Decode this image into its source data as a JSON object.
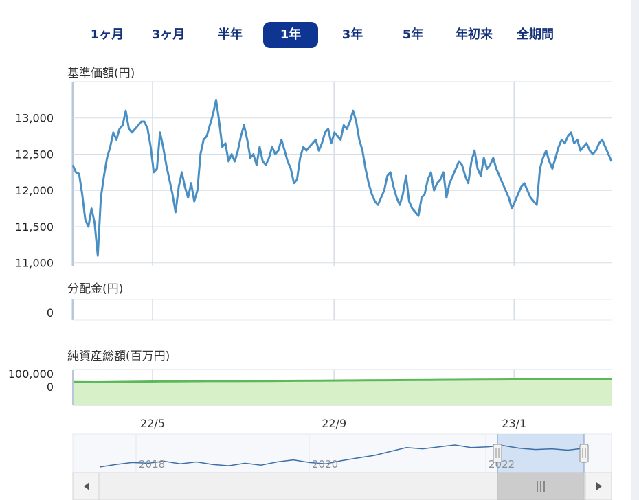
{
  "range_tabs": [
    {
      "label": "1ヶ月",
      "active": false
    },
    {
      "label": "3ヶ月",
      "active": false
    },
    {
      "label": "半年",
      "active": false
    },
    {
      "label": "1年",
      "active": true
    },
    {
      "label": "3年",
      "active": false
    },
    {
      "label": "5年",
      "active": false
    },
    {
      "label": "年初来",
      "active": false
    },
    {
      "label": "全期間",
      "active": false
    }
  ],
  "colors": {
    "price_line": "#4a8fc4",
    "nav_line": "#5db85c",
    "nav_fill": "#d7f0c8",
    "grid": "#d7dde6",
    "active_tab": "#0f3593",
    "navigator_window": "#c9dcf2"
  },
  "chart_data": [
    {
      "type": "line",
      "title": "基準価額(円)",
      "yticks": [
        "13,000",
        "12,500",
        "12,000",
        "11,500",
        "11,000"
      ],
      "ytick_values": [
        13000,
        12500,
        12000,
        11500,
        11000
      ],
      "ylim": [
        10950,
        13500
      ],
      "grid": true,
      "x_start": "2022-03-08",
      "x_end": "2023-03-08",
      "values": [
        12350,
        12250,
        12230,
        11950,
        11600,
        11500,
        11750,
        11550,
        11100,
        11900,
        12200,
        12450,
        12600,
        12800,
        12700,
        12850,
        12900,
        13100,
        12850,
        12800,
        12850,
        12900,
        12950,
        12950,
        12850,
        12600,
        12250,
        12300,
        12800,
        12600,
        12350,
        12150,
        11950,
        11700,
        12050,
        12250,
        12050,
        11900,
        12100,
        11850,
        12000,
        12500,
        12700,
        12750,
        12900,
        13050,
        13250,
        12950,
        12600,
        12650,
        12400,
        12500,
        12400,
        12550,
        12750,
        12900,
        12700,
        12450,
        12500,
        12350,
        12600,
        12400,
        12350,
        12450,
        12600,
        12500,
        12550,
        12700,
        12550,
        12400,
        12300,
        12100,
        12150,
        12450,
        12600,
        12550,
        12600,
        12650,
        12700,
        12550,
        12650,
        12800,
        12850,
        12650,
        12800,
        12750,
        12700,
        12900,
        12850,
        12950,
        13100,
        12950,
        12700,
        12550,
        12300,
        12100,
        11950,
        11850,
        11800,
        11900,
        12000,
        12200,
        12250,
        12050,
        11900,
        11800,
        11950,
        12200,
        11850,
        11750,
        11700,
        11650,
        11900,
        11950,
        12150,
        12250,
        12000,
        12100,
        12150,
        12250,
        11900,
        12100,
        12200,
        12300,
        12400,
        12350,
        12200,
        12100,
        12400,
        12550,
        12300,
        12200,
        12450,
        12300,
        12350,
        12450,
        12300,
        12200,
        12100,
        12000,
        11900,
        11750,
        11850,
        11950,
        12050,
        12100,
        12000,
        11900,
        11850,
        11800,
        12300,
        12450,
        12550,
        12400,
        12300,
        12450,
        12600,
        12700,
        12650,
        12750,
        12800,
        12650,
        12700,
        12550,
        12600,
        12650,
        12550,
        12500,
        12550,
        12650,
        12700,
        12600,
        12500,
        12400
      ],
      "xticks": [
        {
          "label": "22/5",
          "date": "2022-05-01"
        },
        {
          "label": "22/9",
          "date": "2022-09-01"
        },
        {
          "label": "23/1",
          "date": "2023-01-01"
        }
      ]
    },
    {
      "type": "bar",
      "title": "分配金(円)",
      "yticks": [
        "0"
      ],
      "values": [],
      "grid": true
    },
    {
      "type": "area",
      "title": "純資産総額(百万円)",
      "yticks": [
        "100,000",
        "0"
      ],
      "ytick_values": [
        100000,
        0
      ],
      "ylim": [
        -140000,
        130000
      ],
      "values": [
        35000,
        34000,
        36000,
        38000,
        40000,
        41000,
        42000,
        42500,
        43000,
        44000,
        45000,
        46000,
        47000,
        48000,
        49000,
        50000,
        51000,
        52000,
        53000,
        54000,
        55000,
        56000,
        57000,
        58000,
        59000
      ]
    },
    {
      "type": "line",
      "title": "",
      "xticks": [
        "2018",
        "2020",
        "2022"
      ],
      "values": [
        9800,
        10200,
        10500,
        10400,
        10700,
        10300,
        10600,
        10200,
        10000,
        10400,
        10100,
        10600,
        10900,
        10500,
        10300,
        10800,
        11200,
        11600,
        12200,
        12800,
        12600,
        12900,
        13200,
        12800,
        12900,
        13100,
        12700,
        12500,
        12600,
        12400,
        12700
      ]
    }
  ]
}
